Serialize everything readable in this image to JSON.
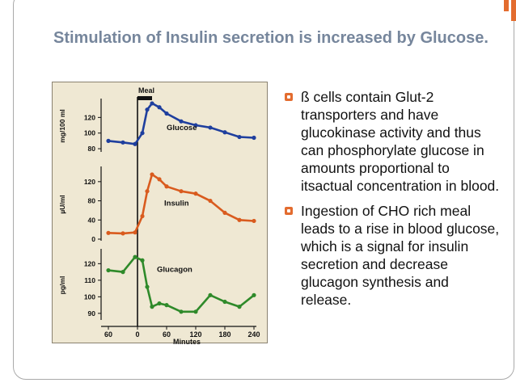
{
  "slide": {
    "title": "Stimulation of Insulin secretion is increased by Glucose.",
    "accent_color": "#e36c2f",
    "bullets": [
      {
        "text": "ß cells contain Glut-2 transporters and have glucokinase activity and thus can phosphorylate glucose in amounts proportional to itsactual concentration in blood."
      },
      {
        "text": "Ingestion of CHO rich meal leads to a rise in blood glucose, which is a signal for insulin secretion and decrease glucagon synthesis and release."
      }
    ]
  },
  "chart_data": [
    {
      "type": "line",
      "name": "Glucose",
      "color": "#1f3f9e",
      "ylabel": "mg/100 ml",
      "yticks": [
        80,
        100,
        120
      ],
      "ylim": [
        78,
        140
      ],
      "x": [
        -60,
        -30,
        -5,
        10,
        20,
        30,
        45,
        60,
        90,
        120,
        150,
        180,
        210,
        240
      ],
      "y": [
        90,
        88,
        86,
        100,
        130,
        138,
        133,
        125,
        115,
        110,
        107,
        101,
        95,
        94
      ]
    },
    {
      "type": "line",
      "name": "Insulin",
      "color": "#d95b1e",
      "ylabel": "µU/ml",
      "yticks": [
        0,
        40,
        80,
        120
      ],
      "ylim": [
        0,
        145
      ],
      "x": [
        -60,
        -30,
        -5,
        10,
        20,
        30,
        45,
        60,
        90,
        120,
        150,
        180,
        210,
        240
      ],
      "y": [
        13,
        12,
        14,
        48,
        100,
        135,
        125,
        110,
        100,
        95,
        80,
        55,
        40,
        38
      ]
    },
    {
      "type": "line",
      "name": "Glucagon",
      "color": "#2f8a2a",
      "ylabel": "pg/ml",
      "yticks": [
        90,
        100,
        110,
        120
      ],
      "ylim": [
        87,
        127
      ],
      "x": [
        -60,
        -30,
        -5,
        10,
        20,
        30,
        45,
        60,
        90,
        120,
        150,
        180,
        210,
        240
      ],
      "y": [
        116,
        115,
        124,
        122,
        106,
        94,
        96,
        95,
        91,
        91,
        101,
        97,
        94,
        101
      ]
    }
  ],
  "shared_axis": {
    "xlabel": "Minutes",
    "xticks": [
      -60,
      0,
      60,
      120,
      180,
      240
    ],
    "xtick_labels": [
      "60",
      "0",
      "60",
      "120",
      "180",
      "240"
    ],
    "xlim": [
      -75,
      245
    ],
    "annotation": "Meal",
    "meal_start": 0,
    "meal_end": 30
  }
}
